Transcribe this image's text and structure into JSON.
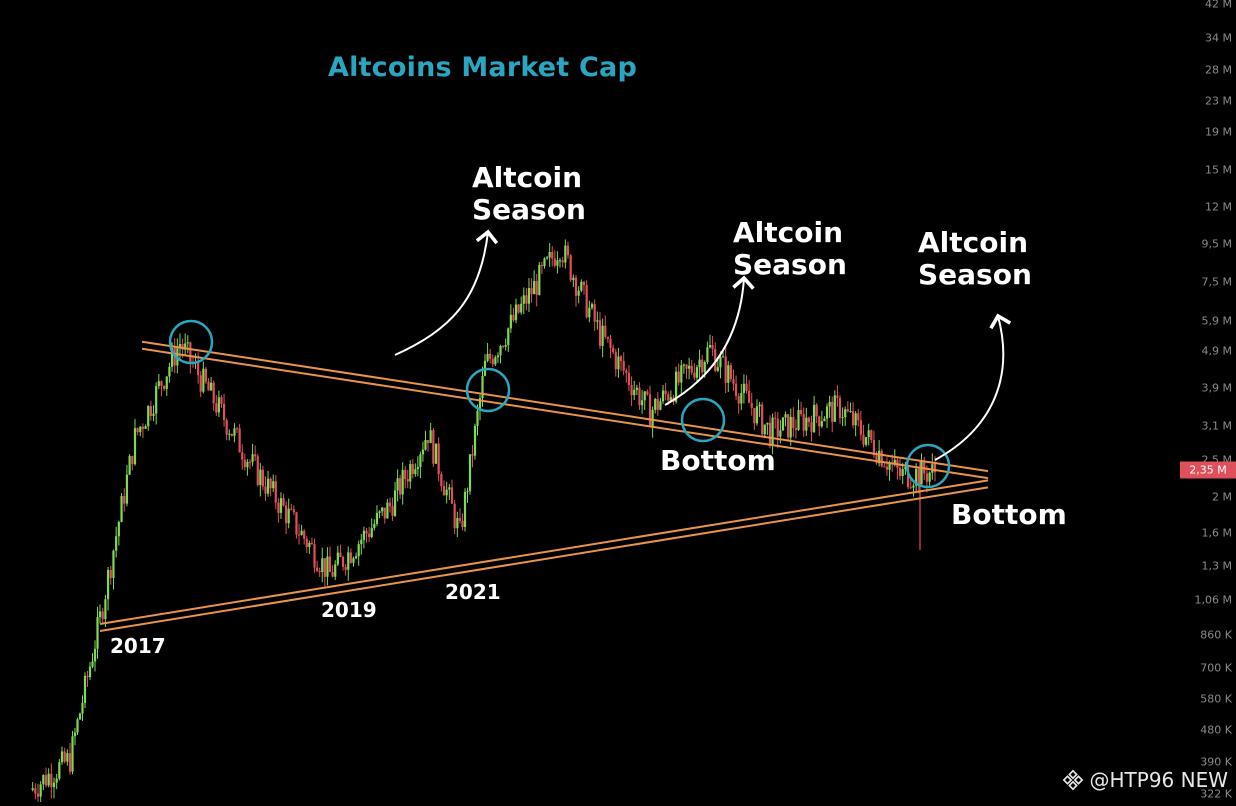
{
  "title": "Altcoins Market Cap",
  "annotations": {
    "season1": [
      "Altcoin",
      "Season"
    ],
    "season2": [
      "Altcoin",
      "Season"
    ],
    "season3": [
      "Altcoin",
      "Season"
    ],
    "bottom1": "Bottom",
    "bottom2": "Bottom"
  },
  "year_labels": [
    "2017",
    "2019",
    "2021"
  ],
  "watermark": "@HTP96 NEW",
  "colors": {
    "background": "#000000",
    "up": "#7ed957",
    "down": "#e0505a",
    "trendline": "#e8944a",
    "circle": "#2aa7c0",
    "title": "#2aa7c0",
    "current_price_tag": "#e0505a"
  },
  "chart_data": {
    "type": "candlestick",
    "title": "Altcoins Market Cap",
    "y_scale": "log",
    "y_ticks": [
      "42 M",
      "34 M",
      "28 M",
      "23 M",
      "19 M",
      "15 M",
      "12 M",
      "9,5 M",
      "7,5 M",
      "5,9 M",
      "4,9 M",
      "3,9 M",
      "3,1 M",
      "2,5 M",
      "2 M",
      "1,6 M",
      "1,3 M",
      "1,06 M",
      "860 K",
      "700 K",
      "580 K",
      "480 K",
      "390 K",
      "322 K"
    ],
    "current_value": "2,35 M",
    "series": [
      {
        "name": "",
        "points": [
          {
            "x": "2016",
            "y": 0.33
          },
          {
            "x": "2016.5",
            "y": 0.4
          },
          {
            "x": "2017",
            "y": 0.95
          },
          {
            "x": "2017.5",
            "y": 2.9
          },
          {
            "x": "2018",
            "y": 5.2
          },
          {
            "x": "2018.5",
            "y": 2.5
          },
          {
            "x": "2019",
            "y": 1.25
          },
          {
            "x": "2019.5",
            "y": 1.9
          },
          {
            "x": "2020",
            "y": 3.0
          },
          {
            "x": "2020.3",
            "y": 1.6
          },
          {
            "x": "2021",
            "y": 4.5
          },
          {
            "x": "2021.5",
            "y": 9.5
          },
          {
            "x": "2022",
            "y": 5.5
          },
          {
            "x": "2022.5",
            "y": 3.4
          },
          {
            "x": "2023",
            "y": 5.0
          },
          {
            "x": "2023.5",
            "y": 3.0
          },
          {
            "x": "2024",
            "y": 3.5
          },
          {
            "x": "2024.5",
            "y": 2.3
          },
          {
            "x": "2025",
            "y": 2.35
          }
        ]
      }
    ],
    "trendlines": [
      {
        "name": "upper",
        "from": {
          "x": "2018",
          "y": 5.5
        },
        "to": {
          "x": "2025",
          "y": 2.3
        }
      },
      {
        "name": "lower",
        "from": {
          "x": "2017",
          "y": 0.93
        },
        "to": {
          "x": "2025",
          "y": 2.2
        }
      }
    ],
    "circles": [
      "2018 top",
      "2021 breakout",
      "2022 bottom",
      "2025 bottom"
    ]
  }
}
